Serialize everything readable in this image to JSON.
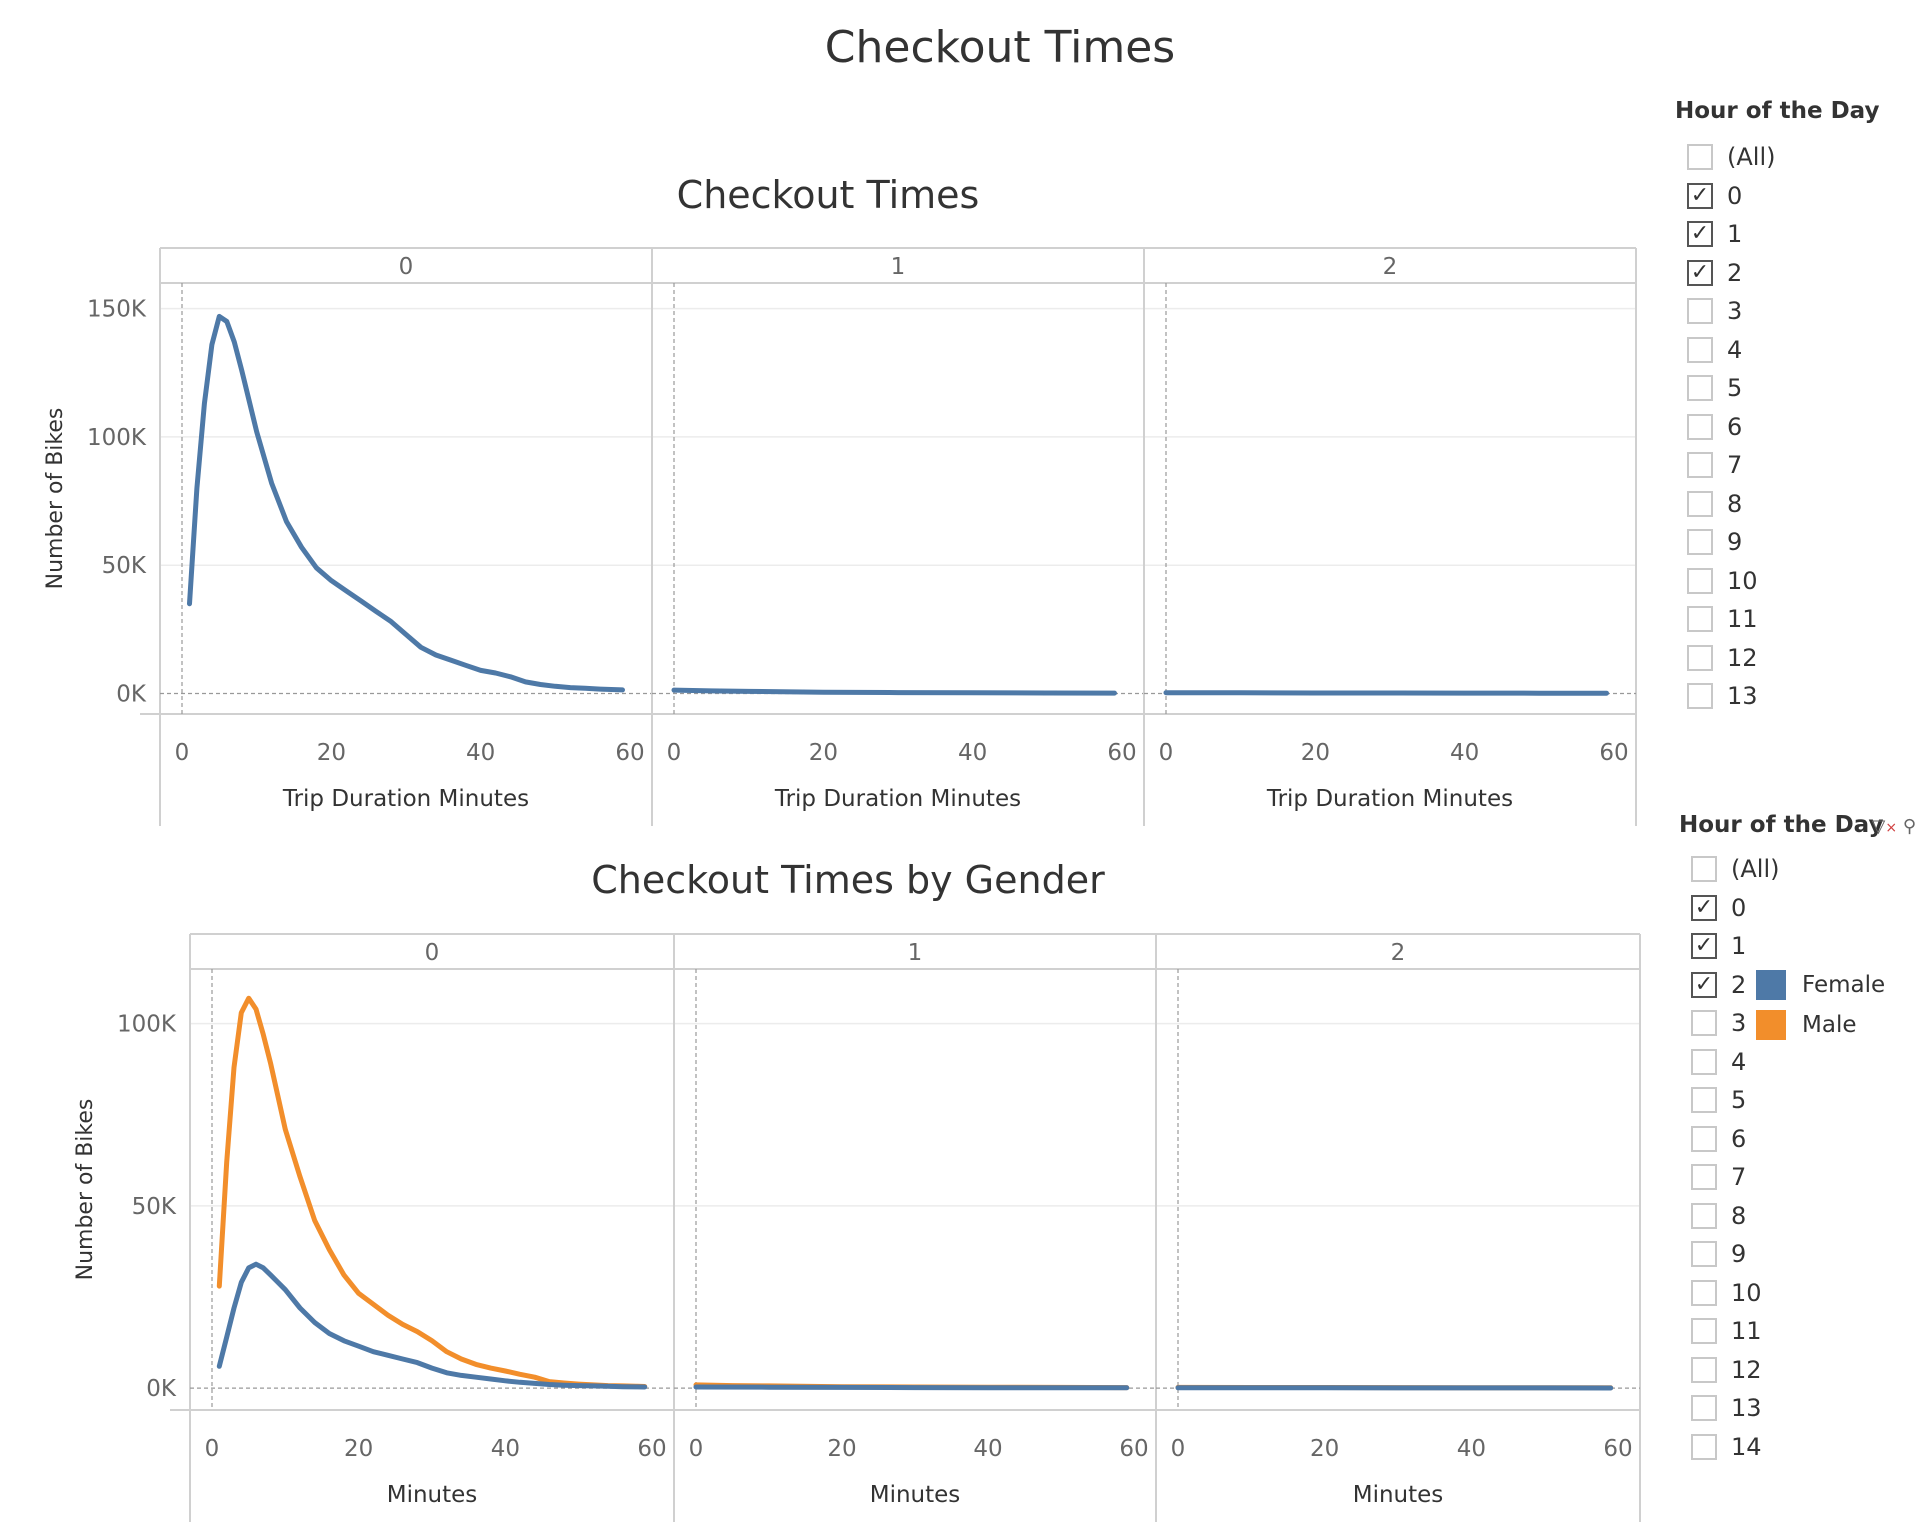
{
  "dashboard_title": "Checkout Times",
  "colors": {
    "female": "#4e79a7",
    "male": "#f28e2b",
    "grid": "#e8e8e8",
    "axis": "#cfcfcf"
  },
  "filter1": {
    "title": "Hour of the Day",
    "options": [
      {
        "label": "(All)",
        "checked": false
      },
      {
        "label": "0",
        "checked": true
      },
      {
        "label": "1",
        "checked": true
      },
      {
        "label": "2",
        "checked": true
      },
      {
        "label": "3",
        "checked": false
      },
      {
        "label": "4",
        "checked": false
      },
      {
        "label": "5",
        "checked": false
      },
      {
        "label": "6",
        "checked": false
      },
      {
        "label": "7",
        "checked": false
      },
      {
        "label": "8",
        "checked": false
      },
      {
        "label": "9",
        "checked": false
      },
      {
        "label": "10",
        "checked": false
      },
      {
        "label": "11",
        "checked": false
      },
      {
        "label": "12",
        "checked": false
      },
      {
        "label": "13",
        "checked": false
      }
    ]
  },
  "filter2": {
    "title": "Hour of the Day",
    "tool_icons": [
      "clear-filter-icon",
      "search-icon"
    ],
    "options": [
      {
        "label": "(All)",
        "checked": false
      },
      {
        "label": "0",
        "checked": true
      },
      {
        "label": "1",
        "checked": true
      },
      {
        "label": "2",
        "checked": true
      },
      {
        "label": "3",
        "checked": false
      },
      {
        "label": "4",
        "checked": false
      },
      {
        "label": "5",
        "checked": false
      },
      {
        "label": "6",
        "checked": false
      },
      {
        "label": "7",
        "checked": false
      },
      {
        "label": "8",
        "checked": false
      },
      {
        "label": "9",
        "checked": false
      },
      {
        "label": "10",
        "checked": false
      },
      {
        "label": "11",
        "checked": false
      },
      {
        "label": "12",
        "checked": false
      },
      {
        "label": "13",
        "checked": false
      },
      {
        "label": "14",
        "checked": false
      }
    ]
  },
  "legend": {
    "items": [
      {
        "label": "Female",
        "color": "#4e79a7"
      },
      {
        "label": "Male",
        "color": "#f28e2b"
      }
    ]
  },
  "chart_data": [
    {
      "type": "line",
      "title": "Checkout Times",
      "panel_header": "",
      "panels": [
        "0",
        "1",
        "2"
      ],
      "xlabel": "Trip Duration Minutes",
      "ylabel": "Number of Bikes",
      "xlim": [
        0,
        60
      ],
      "ylim": [
        -8000,
        160000
      ],
      "x_ticks": [
        "0",
        "20",
        "40",
        "60"
      ],
      "y_ticks": [
        {
          "value": 0,
          "label": "0K"
        },
        {
          "value": 50000,
          "label": "50K"
        },
        {
          "value": 100000,
          "label": "100K"
        },
        {
          "value": 150000,
          "label": "150K"
        }
      ],
      "grid": true,
      "series": [
        {
          "color": "#4e79a7",
          "panel_values": [
            [
              [
                1,
                35000
              ],
              [
                2,
                80000
              ],
              [
                3,
                113000
              ],
              [
                4,
                136000
              ],
              [
                5,
                147000
              ],
              [
                6,
                145000
              ],
              [
                7,
                137000
              ],
              [
                8,
                126000
              ],
              [
                9,
                114000
              ],
              [
                10,
                102000
              ],
              [
                12,
                82000
              ],
              [
                14,
                67000
              ],
              [
                16,
                57000
              ],
              [
                18,
                49000
              ],
              [
                20,
                44000
              ],
              [
                22,
                40000
              ],
              [
                24,
                36000
              ],
              [
                26,
                32000
              ],
              [
                28,
                28000
              ],
              [
                30,
                23000
              ],
              [
                32,
                18000
              ],
              [
                34,
                15000
              ],
              [
                36,
                13000
              ],
              [
                38,
                11000
              ],
              [
                40,
                9000
              ],
              [
                42,
                8000
              ],
              [
                44,
                6500
              ],
              [
                46,
                4500
              ],
              [
                48,
                3500
              ],
              [
                50,
                2800
              ],
              [
                52,
                2300
              ],
              [
                54,
                2000
              ],
              [
                56,
                1700
              ],
              [
                58,
                1500
              ],
              [
                59,
                1400
              ]
            ],
            [
              [
                0,
                1300
              ],
              [
                5,
                1000
              ],
              [
                10,
                800
              ],
              [
                20,
                500
              ],
              [
                30,
                350
              ],
              [
                40,
                250
              ],
              [
                50,
                200
              ],
              [
                59,
                150
              ]
            ],
            [
              [
                0,
                300
              ],
              [
                10,
                250
              ],
              [
                20,
                200
              ],
              [
                30,
                180
              ],
              [
                40,
                150
              ],
              [
                50,
                120
              ],
              [
                59,
                100
              ]
            ]
          ]
        }
      ]
    },
    {
      "type": "line",
      "title": "Checkout Times by Gender",
      "panel_header": "",
      "panels": [
        "0",
        "1",
        "2"
      ],
      "xlabel": "Minutes",
      "ylabel": "Number of Bikes",
      "xlim": [
        0,
        60
      ],
      "ylim": [
        -6000,
        115000
      ],
      "x_ticks": [
        "0",
        "20",
        "40",
        "60"
      ],
      "y_ticks": [
        {
          "value": 0,
          "label": "0K"
        },
        {
          "value": 50000,
          "label": "50K"
        },
        {
          "value": 100000,
          "label": "100K"
        }
      ],
      "grid": true,
      "series": [
        {
          "name": "Male",
          "color": "#f28e2b",
          "panel_values": [
            [
              [
                1,
                28000
              ],
              [
                2,
                62000
              ],
              [
                3,
                88000
              ],
              [
                4,
                103000
              ],
              [
                5,
                107000
              ],
              [
                6,
                104000
              ],
              [
                7,
                97000
              ],
              [
                8,
                89000
              ],
              [
                9,
                80000
              ],
              [
                10,
                71000
              ],
              [
                12,
                58000
              ],
              [
                14,
                46000
              ],
              [
                16,
                38000
              ],
              [
                18,
                31000
              ],
              [
                20,
                26000
              ],
              [
                22,
                23000
              ],
              [
                24,
                20000
              ],
              [
                26,
                17500
              ],
              [
                28,
                15500
              ],
              [
                30,
                13000
              ],
              [
                32,
                10000
              ],
              [
                34,
                8000
              ],
              [
                36,
                6500
              ],
              [
                38,
                5500
              ],
              [
                40,
                4700
              ],
              [
                42,
                3800
              ],
              [
                44,
                3000
              ],
              [
                46,
                1800
              ],
              [
                48,
                1400
              ],
              [
                50,
                1100
              ],
              [
                52,
                900
              ],
              [
                54,
                700
              ],
              [
                56,
                600
              ],
              [
                58,
                500
              ],
              [
                59,
                450
              ]
            ],
            [
              [
                0,
                900
              ],
              [
                5,
                700
              ],
              [
                10,
                600
              ],
              [
                20,
                400
              ],
              [
                30,
                300
              ],
              [
                40,
                250
              ],
              [
                50,
                200
              ],
              [
                59,
                150
              ]
            ],
            [
              [
                0,
                200
              ],
              [
                10,
                180
              ],
              [
                20,
                160
              ],
              [
                30,
                140
              ],
              [
                40,
                120
              ],
              [
                50,
                110
              ],
              [
                59,
                100
              ]
            ]
          ]
        },
        {
          "name": "Female",
          "color": "#4e79a7",
          "panel_values": [
            [
              [
                1,
                6000
              ],
              [
                2,
                14000
              ],
              [
                3,
                22000
              ],
              [
                4,
                29000
              ],
              [
                5,
                33000
              ],
              [
                6,
                34000
              ],
              [
                7,
                33000
              ],
              [
                8,
                31000
              ],
              [
                9,
                29000
              ],
              [
                10,
                27000
              ],
              [
                12,
                22000
              ],
              [
                14,
                18000
              ],
              [
                16,
                15000
              ],
              [
                18,
                13000
              ],
              [
                20,
                11500
              ],
              [
                22,
                10000
              ],
              [
                24,
                9000
              ],
              [
                26,
                8000
              ],
              [
                28,
                7000
              ],
              [
                30,
                5500
              ],
              [
                32,
                4200
              ],
              [
                34,
                3500
              ],
              [
                36,
                3000
              ],
              [
                38,
                2500
              ],
              [
                40,
                2000
              ],
              [
                42,
                1600
              ],
              [
                44,
                1300
              ],
              [
                46,
                1000
              ],
              [
                48,
                800
              ],
              [
                50,
                700
              ],
              [
                52,
                600
              ],
              [
                54,
                500
              ],
              [
                56,
                400
              ],
              [
                58,
                350
              ],
              [
                59,
                300
              ]
            ],
            [
              [
                0,
                300
              ],
              [
                10,
                250
              ],
              [
                20,
                200
              ],
              [
                30,
                150
              ],
              [
                40,
                120
              ],
              [
                50,
                100
              ],
              [
                59,
                80
              ]
            ],
            [
              [
                0,
                100
              ],
              [
                10,
                90
              ],
              [
                20,
                80
              ],
              [
                30,
                70
              ],
              [
                40,
                60
              ],
              [
                50,
                55
              ],
              [
                59,
                50
              ]
            ]
          ]
        }
      ]
    }
  ]
}
